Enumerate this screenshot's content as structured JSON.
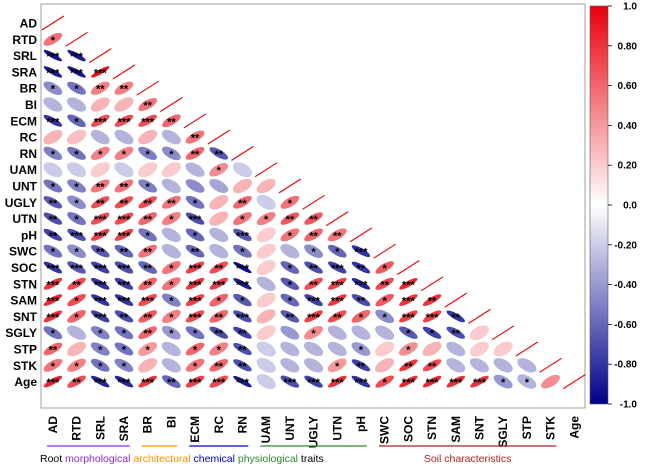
{
  "chart_data": {
    "type": "heatmap",
    "subtype": "correlation-ellipse-lower-triangle",
    "variables": [
      "AD",
      "RTD",
      "SRL",
      "SRA",
      "BR",
      "BI",
      "ECM",
      "RC",
      "RN",
      "UAM",
      "UNT",
      "UGLY",
      "UTN",
      "pH",
      "SWC",
      "SOC",
      "STN",
      "SAM",
      "SNT",
      "SGLY",
      "STP",
      "STK",
      "Age"
    ],
    "colorbar": {
      "range": [
        -1.0,
        1.0
      ],
      "ticks": [
        "1.0",
        "0.80",
        "0.60",
        "0.40",
        "0.20",
        "0.0",
        "-0.20",
        "-0.40",
        "-0.60",
        "-0.80",
        "-1.0"
      ],
      "low_color": "#00008b",
      "mid_color": "#ffffff",
      "high_color": "#e8000b"
    },
    "diagonal_color": "#e8000b",
    "significance_symbols": [
      "*",
      "**",
      "***"
    ],
    "matrix": [
      [],
      [
        [
          0.55,
          "*"
        ]
      ],
      [
        [
          -0.92,
          "***"
        ],
        [
          -0.9,
          "***"
        ]
      ],
      [
        [
          -0.9,
          "***"
        ],
        [
          -0.92,
          "***"
        ],
        [
          0.95,
          "***"
        ]
      ],
      [
        [
          -0.45,
          "*"
        ],
        [
          -0.55,
          "*"
        ],
        [
          0.5,
          "**"
        ],
        [
          0.5,
          "**"
        ]
      ],
      [
        [
          -0.3,
          ""
        ],
        [
          -0.3,
          ""
        ],
        [
          0.3,
          ""
        ],
        [
          0.3,
          ""
        ],
        [
          0.55,
          "**"
        ]
      ],
      [
        [
          -0.8,
          "***"
        ],
        [
          -0.6,
          "*"
        ],
        [
          0.7,
          "***"
        ],
        [
          0.7,
          "***"
        ],
        [
          0.7,
          "***"
        ],
        [
          0.6,
          "**"
        ]
      ],
      [
        [
          0.3,
          ""
        ],
        [
          0.25,
          ""
        ],
        [
          -0.3,
          ""
        ],
        [
          -0.3,
          ""
        ],
        [
          0.3,
          ""
        ],
        [
          -0.3,
          ""
        ],
        [
          0.55,
          "**"
        ]
      ],
      [
        [
          -0.5,
          "*"
        ],
        [
          -0.55,
          "*"
        ],
        [
          0.5,
          "*"
        ],
        [
          0.5,
          "*"
        ],
        [
          -0.5,
          "*"
        ],
        [
          -0.45,
          "*"
        ],
        [
          0.6,
          "**"
        ],
        [
          -0.65,
          "**"
        ]
      ],
      [
        [
          -0.2,
          ""
        ],
        [
          -0.2,
          ""
        ],
        [
          0.2,
          ""
        ],
        [
          -0.2,
          ""
        ],
        [
          0.2,
          ""
        ],
        [
          0.2,
          ""
        ],
        [
          -0.3,
          ""
        ],
        [
          0.45,
          "*"
        ],
        [
          -0.2,
          ""
        ]
      ],
      [
        [
          -0.55,
          "*"
        ],
        [
          -0.5,
          "*"
        ],
        [
          0.55,
          "**"
        ],
        [
          0.55,
          "**"
        ],
        [
          -0.5,
          "*"
        ],
        [
          -0.3,
          ""
        ],
        [
          -0.45,
          ""
        ],
        [
          -0.35,
          ""
        ],
        [
          0.3,
          ""
        ],
        [
          0.3,
          ""
        ]
      ],
      [
        [
          -0.65,
          "**"
        ],
        [
          -0.45,
          "*"
        ],
        [
          0.7,
          "**"
        ],
        [
          0.7,
          "**"
        ],
        [
          0.7,
          "**"
        ],
        [
          0.55,
          "**"
        ],
        [
          -0.55,
          "*"
        ],
        [
          0.3,
          ""
        ],
        [
          0.6,
          "**"
        ],
        [
          -0.2,
          ""
        ],
        [
          0.55,
          "*"
        ]
      ],
      [
        [
          -0.7,
          "**"
        ],
        [
          -0.55,
          "*"
        ],
        [
          0.7,
          "***"
        ],
        [
          0.7,
          "***"
        ],
        [
          0.6,
          "**"
        ],
        [
          0.5,
          "*"
        ],
        [
          -0.7,
          "***"
        ],
        [
          0.3,
          ""
        ],
        [
          0.55,
          "*"
        ],
        [
          0.5,
          "*"
        ],
        [
          0.65,
          "**"
        ],
        [
          0.65,
          "**"
        ]
      ],
      [
        [
          -0.75,
          "**"
        ],
        [
          -0.7,
          "***"
        ],
        [
          0.75,
          "***"
        ],
        [
          0.75,
          "***"
        ],
        [
          -0.55,
          "*"
        ],
        [
          -0.3,
          ""
        ],
        [
          -0.6,
          "*"
        ],
        [
          -0.3,
          ""
        ],
        [
          -0.65,
          "***"
        ],
        [
          0.2,
          ""
        ],
        [
          0.55,
          "*"
        ],
        [
          0.6,
          "**"
        ],
        [
          0.55,
          "**"
        ]
      ],
      [
        [
          -0.55,
          "*"
        ],
        [
          -0.45,
          "*"
        ],
        [
          -0.65,
          "**"
        ],
        [
          -0.6,
          "**"
        ],
        [
          0.55,
          "**"
        ],
        [
          -0.3,
          ""
        ],
        [
          -0.6,
          "**"
        ],
        [
          -0.3,
          ""
        ],
        [
          -0.55,
          "*"
        ],
        [
          0.2,
          ""
        ],
        [
          -0.3,
          ""
        ],
        [
          -0.45,
          "*"
        ],
        [
          -0.6,
          "*"
        ],
        [
          -0.8,
          "***"
        ]
      ],
      [
        [
          -0.8,
          "***"
        ],
        [
          -0.65,
          "***"
        ],
        [
          -0.75,
          "***"
        ],
        [
          -0.7,
          "***"
        ],
        [
          -0.6,
          "**"
        ],
        [
          0.55,
          "*"
        ],
        [
          0.75,
          "***"
        ],
        [
          0.7,
          "**"
        ],
        [
          -0.95,
          "***"
        ],
        [
          0.2,
          ""
        ],
        [
          -0.6,
          "*"
        ],
        [
          -0.7,
          "**"
        ],
        [
          -0.75,
          "***"
        ],
        [
          -0.8,
          "**"
        ],
        [
          0.65,
          "*"
        ]
      ],
      [
        [
          0.8,
          "***"
        ],
        [
          0.7,
          "**"
        ],
        [
          -0.8,
          "***"
        ],
        [
          -0.75,
          "***"
        ],
        [
          0.6,
          "**"
        ],
        [
          0.55,
          "*"
        ],
        [
          0.8,
          "***"
        ],
        [
          0.75,
          "***"
        ],
        [
          -0.9,
          "***"
        ],
        [
          -0.3,
          ""
        ],
        [
          -0.65,
          "*"
        ],
        [
          0.7,
          "**"
        ],
        [
          0.75,
          "***"
        ],
        [
          -0.85,
          "***"
        ],
        [
          0.7,
          "**"
        ],
        [
          0.85,
          "***"
        ]
      ],
      [
        [
          0.85,
          "***"
        ],
        [
          0.7,
          "*"
        ],
        [
          -0.8,
          "***"
        ],
        [
          -0.8,
          "***"
        ],
        [
          0.7,
          "***"
        ],
        [
          -0.5,
          "*"
        ],
        [
          0.75,
          "***"
        ],
        [
          0.6,
          "*"
        ],
        [
          -0.65,
          "*"
        ],
        [
          0.2,
          ""
        ],
        [
          -0.6,
          "*"
        ],
        [
          -0.75,
          "***"
        ],
        [
          0.8,
          "***"
        ],
        [
          -0.7,
          "**"
        ],
        [
          0.65,
          "*"
        ],
        [
          0.8,
          "***"
        ],
        [
          0.8,
          "**"
        ]
      ],
      [
        [
          0.8,
          "***"
        ],
        [
          0.6,
          "*"
        ],
        [
          -0.75,
          "***"
        ],
        [
          -0.7,
          "**"
        ],
        [
          0.65,
          "**"
        ],
        [
          0.5,
          "*"
        ],
        [
          0.7,
          "***"
        ],
        [
          0.6,
          "**"
        ],
        [
          -0.7,
          "***"
        ],
        [
          0.3,
          ""
        ],
        [
          -0.65,
          "**"
        ],
        [
          0.75,
          "***"
        ],
        [
          0.7,
          "**"
        ],
        [
          0.6,
          "*"
        ],
        [
          -0.45,
          "*"
        ],
        [
          0.75,
          "***"
        ],
        [
          0.75,
          "***"
        ],
        [
          -0.8,
          "**"
        ]
      ],
      [
        [
          -0.55,
          "*"
        ],
        [
          -0.3,
          ""
        ],
        [
          -0.5,
          "*"
        ],
        [
          -0.55,
          "*"
        ],
        [
          0.6,
          "**"
        ],
        [
          -0.4,
          "*"
        ],
        [
          -0.55,
          "*"
        ],
        [
          -0.7,
          "**"
        ],
        [
          -0.75,
          "**"
        ],
        [
          0.2,
          ""
        ],
        [
          -0.4,
          ""
        ],
        [
          0.45,
          "*"
        ],
        [
          -0.3,
          ""
        ],
        [
          -0.3,
          ""
        ],
        [
          -0.3,
          ""
        ],
        [
          -0.65,
          "*"
        ],
        [
          -0.75,
          "*"
        ],
        [
          -0.7,
          "**"
        ],
        [
          0.2,
          ""
        ]
      ],
      [
        [
          0.6,
          "**"
        ],
        [
          0.3,
          ""
        ],
        [
          -0.5,
          "*"
        ],
        [
          -0.55,
          "*"
        ],
        [
          0.4,
          "*"
        ],
        [
          -0.3,
          ""
        ],
        [
          0.6,
          "*"
        ],
        [
          0.5,
          "*"
        ],
        [
          -0.7,
          "**"
        ],
        [
          -0.2,
          ""
        ],
        [
          -0.3,
          ""
        ],
        [
          -0.3,
          ""
        ],
        [
          -0.3,
          ""
        ],
        [
          -0.4,
          "*"
        ],
        [
          0.2,
          ""
        ],
        [
          0.45,
          "*"
        ],
        [
          0.3,
          ""
        ],
        [
          -0.3,
          ""
        ],
        [
          0.2,
          ""
        ],
        [
          0.2,
          ""
        ]
      ],
      [
        [
          0.55,
          "*"
        ],
        [
          0.5,
          "*"
        ],
        [
          -0.55,
          "*"
        ],
        [
          -0.5,
          "*"
        ],
        [
          0.3,
          ""
        ],
        [
          -0.3,
          ""
        ],
        [
          0.55,
          "*"
        ],
        [
          0.6,
          "**"
        ],
        [
          -0.7,
          "**"
        ],
        [
          -0.2,
          ""
        ],
        [
          -0.3,
          ""
        ],
        [
          -0.3,
          ""
        ],
        [
          0.4,
          "*"
        ],
        [
          -0.75,
          "**"
        ],
        [
          0.3,
          ""
        ],
        [
          0.8,
          "**"
        ],
        [
          0.7,
          "**"
        ],
        [
          -0.3,
          ""
        ],
        [
          -0.3,
          ""
        ],
        [
          -0.3,
          ""
        ],
        [
          -0.3,
          ""
        ]
      ],
      [
        [
          0.85,
          "***"
        ],
        [
          0.7,
          "**"
        ],
        [
          -0.85,
          "***"
        ],
        [
          -0.85,
          "***"
        ],
        [
          0.8,
          "***"
        ],
        [
          -0.6,
          "**"
        ],
        [
          0.75,
          "***"
        ],
        [
          0.7,
          "***"
        ],
        [
          -0.9,
          "***"
        ],
        [
          -0.2,
          ""
        ],
        [
          -0.7,
          "***"
        ],
        [
          -0.75,
          "***"
        ],
        [
          0.8,
          "***"
        ],
        [
          -0.8,
          "***"
        ],
        [
          0.7,
          "*"
        ],
        [
          0.85,
          "***"
        ],
        [
          0.85,
          "***"
        ],
        [
          0.8,
          "***"
        ],
        [
          0.8,
          "***"
        ],
        [
          -0.4,
          "*"
        ],
        [
          -0.3,
          "*"
        ],
        [
          0.45,
          ""
        ]
      ]
    ]
  },
  "legend": {
    "root_label": "Root",
    "categories": [
      {
        "name": "morphological",
        "color": "#8a2be2",
        "span": [
          "AD",
          "SRA"
        ]
      },
      {
        "name": "architectural",
        "color": "#ff8c00",
        "span": [
          "BR",
          "BI"
        ]
      },
      {
        "name": "chemical",
        "color": "#0000cd",
        "span": [
          "ECM",
          "RN"
        ]
      },
      {
        "name": "physiological",
        "color": "#2e8b2e",
        "span": [
          "UAM",
          "pH"
        ]
      }
    ],
    "traits_label": "traits",
    "soil": {
      "name": "Soil characteristics",
      "color": "#b22222",
      "span": [
        "SWC",
        "STK"
      ]
    }
  }
}
